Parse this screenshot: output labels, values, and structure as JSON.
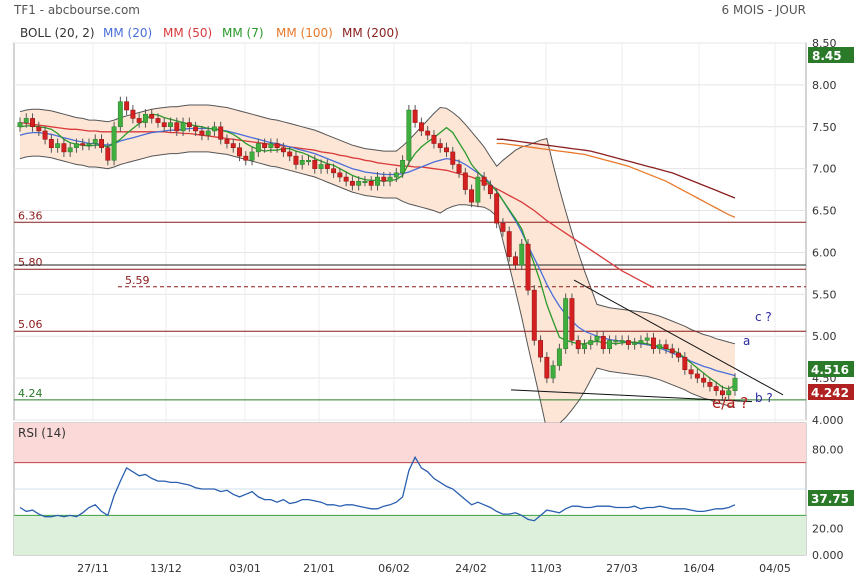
{
  "header": {
    "title": "TF1 - abcbourse.com",
    "period": "6 MOIS - JOUR"
  },
  "legend": [
    {
      "label": "BOLL (20, 2)",
      "color": "#333333"
    },
    {
      "label": "MM (20)",
      "color": "#4a6fd8"
    },
    {
      "label": "MM (50)",
      "color": "#d83a3a"
    },
    {
      "label": "MM (7)",
      "color": "#2a9a2a"
    },
    {
      "label": "MM (100)",
      "color": "#e8782a"
    },
    {
      "label": "MM (200)",
      "color": "#8b2020"
    }
  ],
  "badges": {
    "top": "8.45",
    "current": "4.516",
    "low": "4.242",
    "rsi": "37.75"
  },
  "rsi_title": "RSI (14)",
  "annotations": {
    "a": "a",
    "b": "b ?",
    "c": "c ?",
    "ea": "e/a ?"
  },
  "chart_data": {
    "type": "candlestick",
    "price_axis": {
      "ticks": [
        "8.50",
        "8.00",
        "7.50",
        "7.00",
        "6.50",
        "6.00",
        "5.50",
        "5.00",
        "4.50",
        "4.000"
      ],
      "range": [
        4.0,
        8.5
      ]
    },
    "rsi_axis": {
      "ticks": [
        "80.00",
        "20.00",
        "0.000"
      ],
      "range": [
        0,
        100
      ]
    },
    "x_ticks": [
      "27/11",
      "13/12",
      "03/01",
      "21/01",
      "06/02",
      "24/02",
      "11/03",
      "27/03",
      "16/04",
      "04/05"
    ],
    "levels": [
      {
        "label": "6.36",
        "value": 6.36
      },
      {
        "label": "5.80",
        "value": 5.8
      },
      {
        "label": "5.59",
        "value": 5.59
      },
      {
        "label": "5.06",
        "value": 5.06
      },
      {
        "label": "4.24",
        "value": 4.24
      }
    ],
    "closes": [
      7.55,
      7.6,
      7.5,
      7.45,
      7.35,
      7.25,
      7.3,
      7.2,
      7.25,
      7.3,
      7.28,
      7.3,
      7.35,
      7.25,
      7.1,
      7.5,
      7.8,
      7.7,
      7.6,
      7.55,
      7.65,
      7.6,
      7.55,
      7.5,
      7.55,
      7.45,
      7.55,
      7.5,
      7.45,
      7.4,
      7.45,
      7.5,
      7.35,
      7.3,
      7.25,
      7.15,
      7.1,
      7.2,
      7.3,
      7.25,
      7.3,
      7.25,
      7.2,
      7.15,
      7.05,
      7.1,
      7.1,
      7.0,
      7.05,
      7.0,
      6.95,
      6.9,
      6.85,
      6.8,
      6.85,
      6.85,
      6.8,
      6.9,
      6.85,
      6.9,
      6.95,
      7.1,
      7.7,
      7.55,
      7.45,
      7.4,
      7.3,
      7.25,
      7.2,
      7.05,
      6.95,
      6.75,
      6.6,
      6.9,
      6.8,
      6.7,
      6.35,
      6.25,
      5.95,
      5.85,
      6.1,
      5.55,
      4.95,
      4.75,
      4.5,
      4.65,
      4.85,
      5.45,
      4.95,
      4.85,
      4.9,
      4.95,
      5.0,
      4.85,
      4.95,
      4.95,
      4.95,
      4.9,
      4.92,
      4.95,
      4.98,
      4.85,
      4.9,
      4.85,
      4.8,
      4.75,
      4.6,
      4.55,
      4.5,
      4.45,
      4.4,
      4.35,
      4.3,
      4.35,
      4.5
    ],
    "ma7": [
      7.5,
      7.51,
      7.51,
      7.5,
      7.49,
      7.47,
      7.42,
      7.35,
      7.31,
      7.29,
      7.28,
      7.27,
      7.28,
      7.28,
      7.26,
      7.3,
      7.35,
      7.42,
      7.48,
      7.54,
      7.58,
      7.65,
      7.64,
      7.61,
      7.59,
      7.57,
      7.55,
      7.53,
      7.51,
      7.5,
      7.48,
      7.48,
      7.46,
      7.44,
      7.41,
      7.36,
      7.3,
      7.26,
      7.23,
      7.21,
      7.22,
      7.22,
      7.24,
      7.24,
      7.21,
      7.19,
      7.16,
      7.12,
      7.09,
      7.06,
      7.04,
      7.0,
      6.96,
      6.92,
      6.89,
      6.87,
      6.86,
      6.86,
      6.85,
      6.86,
      6.87,
      6.92,
      7.07,
      7.18,
      7.26,
      7.32,
      7.37,
      7.43,
      7.49,
      7.43,
      7.31,
      7.19,
      7.05,
      6.96,
      6.88,
      6.81,
      6.73,
      6.62,
      6.51,
      6.4,
      6.28,
      6.07,
      5.86,
      5.64,
      5.38,
      5.18,
      4.99,
      4.95,
      4.93,
      4.91,
      4.91,
      4.93,
      4.94,
      4.92,
      4.92,
      4.91,
      4.92,
      4.93,
      4.93,
      4.92,
      4.91,
      4.89,
      4.88,
      4.85,
      4.83,
      4.8,
      4.74,
      4.68,
      4.62,
      4.56,
      4.5,
      4.45,
      4.39,
      4.37,
      4.42
    ],
    "ma20": [
      7.4,
      7.42,
      7.43,
      7.43,
      7.42,
      7.41,
      7.39,
      7.37,
      7.35,
      7.33,
      7.32,
      7.3,
      7.3,
      7.29,
      7.28,
      7.3,
      7.33,
      7.35,
      7.37,
      7.39,
      7.41,
      7.43,
      7.44,
      7.45,
      7.46,
      7.46,
      7.47,
      7.48,
      7.48,
      7.48,
      7.48,
      7.47,
      7.46,
      7.45,
      7.43,
      7.41,
      7.39,
      7.37,
      7.35,
      7.33,
      7.31,
      7.3,
      7.28,
      7.26,
      7.24,
      7.22,
      7.2,
      7.18,
      7.15,
      7.12,
      7.09,
      7.06,
      7.03,
      7.0,
      6.98,
      6.96,
      6.95,
      6.94,
      6.93,
      6.93,
      6.93,
      6.94,
      6.96,
      6.99,
      7.02,
      7.05,
      7.08,
      7.1,
      7.12,
      7.11,
      7.09,
      7.05,
      7.0,
      6.95,
      6.9,
      6.82,
      6.73,
      6.62,
      6.5,
      6.38,
      6.24,
      6.08,
      5.93,
      5.78,
      5.62,
      5.48,
      5.36,
      5.26,
      5.18,
      5.11,
      5.06,
      5.03,
      5.0,
      4.98,
      4.96,
      4.95,
      4.94,
      4.93,
      4.92,
      4.91,
      4.9,
      4.88,
      4.86,
      4.83,
      4.8,
      4.77,
      4.74,
      4.7,
      4.67,
      4.64,
      4.62,
      4.59,
      4.57,
      4.55,
      4.53
    ],
    "ma50": [
      7.55,
      7.54,
      7.53,
      7.52,
      7.51,
      7.5,
      7.49,
      7.48,
      7.47,
      7.47,
      7.46,
      7.45,
      7.45,
      7.44,
      7.44,
      7.44,
      7.44,
      7.44,
      7.44,
      7.44,
      7.44,
      7.44,
      7.44,
      7.44,
      7.43,
      7.43,
      7.42,
      7.42,
      7.41,
      7.4,
      7.39,
      7.38,
      7.37,
      7.36,
      7.35,
      7.34,
      7.33,
      7.32,
      7.31,
      7.3,
      7.29,
      7.28,
      7.27,
      7.26,
      7.25,
      7.24,
      7.23,
      7.22,
      7.2,
      7.19,
      7.18,
      7.16,
      7.15,
      7.13,
      7.12,
      7.1,
      7.09,
      7.07,
      7.06,
      7.05,
      7.04,
      7.03,
      7.03,
      7.02,
      7.02,
      7.01,
      7.0,
      6.99,
      6.98,
      6.96,
      6.94,
      6.92,
      6.9,
      6.87,
      6.84,
      6.8,
      6.76,
      6.72,
      6.68,
      6.64,
      6.6,
      6.55,
      6.5,
      6.44,
      6.38,
      6.33,
      6.28,
      6.23,
      6.18,
      6.13,
      6.08,
      6.03,
      5.98,
      5.93,
      5.88,
      5.83,
      5.78,
      5.74,
      5.7,
      5.66,
      5.62,
      5.58
    ],
    "ma100": [
      7.3,
      7.3,
      7.29,
      7.28,
      7.27,
      7.26,
      7.25,
      7.24,
      7.23,
      7.22,
      7.21,
      7.2,
      7.19,
      7.18,
      7.17,
      7.15,
      7.13,
      7.11,
      7.09,
      7.07,
      7.05,
      7.03,
      7.0,
      6.97,
      6.94,
      6.91,
      6.88,
      6.85,
      6.81,
      6.77,
      6.73,
      6.69,
      6.65,
      6.61,
      6.57,
      6.53,
      6.49,
      6.45,
      6.42
    ],
    "ma200": [
      7.35,
      7.35,
      7.34,
      7.33,
      7.32,
      7.31,
      7.3,
      7.29,
      7.28,
      7.27,
      7.26,
      7.25,
      7.24,
      7.23,
      7.22,
      7.21,
      7.19,
      7.17,
      7.15,
      7.13,
      7.11,
      7.09,
      7.07,
      7.05,
      7.03,
      7.01,
      6.99,
      6.97,
      6.95,
      6.92,
      6.89,
      6.86,
      6.83,
      6.8,
      6.77,
      6.74,
      6.71,
      6.68,
      6.65
    ],
    "rsi": [
      36,
      33,
      34,
      31,
      29,
      29,
      30,
      29,
      30,
      29,
      32,
      36,
      38,
      33,
      30,
      45,
      56,
      66,
      63,
      60,
      61,
      58,
      56,
      56,
      55,
      55,
      54,
      53,
      51,
      50,
      50,
      50,
      48,
      49,
      46,
      44,
      46,
      48,
      44,
      42,
      42,
      40,
      42,
      39,
      40,
      42,
      42,
      41,
      40,
      38,
      38,
      37,
      38,
      38,
      37,
      36,
      35,
      35,
      37,
      38,
      40,
      44,
      64,
      74,
      66,
      63,
      58,
      55,
      52,
      50,
      46,
      42,
      38,
      40,
      38,
      36,
      33,
      31,
      31,
      32,
      30,
      27,
      26,
      30,
      34,
      33,
      32,
      35,
      37,
      37,
      36,
      36,
      37,
      37,
      37,
      36,
      36,
      36,
      37,
      35,
      36,
      36,
      37,
      36,
      35,
      35,
      35,
      34,
      33,
      33,
      34,
      35,
      35,
      36,
      38
    ]
  }
}
